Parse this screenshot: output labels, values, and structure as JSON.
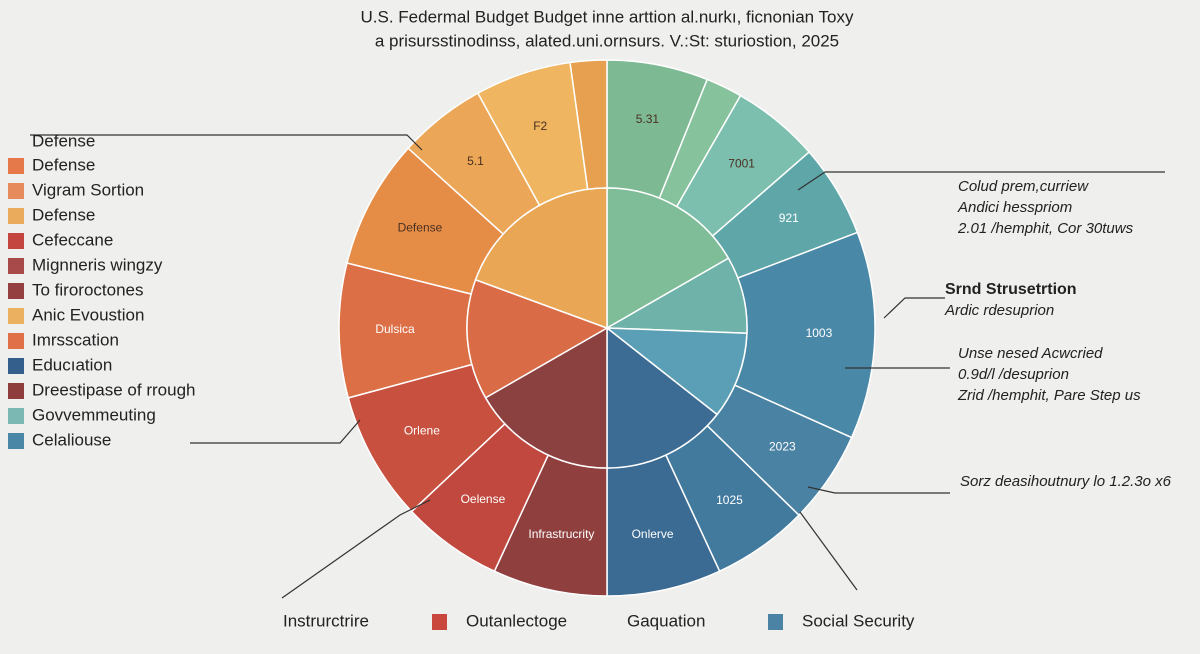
{
  "chart_data": {
    "type": "sunburst",
    "title": "U.S. Federmal Budget Budget inne arttion al.nurkı, ficnonian Toxy",
    "subtitle": "a prisursstinodinss, alated.uni.ornsurs. V.:St: sturiostion, 2025",
    "outer": {
      "categories": [
        "5.31",
        null,
        "7001",
        "921",
        "1003",
        "2023",
        "1025",
        "Onlerve",
        "Infrastrucrity",
        "Oelense",
        "Orlene",
        "Dulsica",
        "Defense",
        "5.1",
        "F2",
        null
      ],
      "values": [
        6.1,
        2.2,
        5.3,
        5.6,
        12.5,
        5.6,
        5.8,
        6.9,
        6.9,
        6.1,
        7.8,
        8.1,
        7.8,
        5.3,
        5.8,
        2.2
      ],
      "colors": [
        "#7dba94",
        "#86c29c",
        "#7cbfae",
        "#5fa6a8",
        "#4a88a8",
        "#4a82a3",
        "#427a9e",
        "#3b6a92",
        "#8e3f3e",
        "#c0483e",
        "#c8503f",
        "#dc6f45",
        "#e58c46",
        "#eba657",
        "#efb561",
        "#e6a04f"
      ]
    },
    "inner": {
      "values": [
        16.7,
        8.9,
        10.0,
        14.4,
        16.7,
        13.9,
        19.4
      ],
      "colors": [
        "#7fbc98",
        "#6fb2aa",
        "#5a9fb5",
        "#3c6b93",
        "#8b4140",
        "#d96c46",
        "#e9a654"
      ]
    },
    "legend": {
      "title": "Defense",
      "items": [
        {
          "label": "Defense",
          "color": "#e5794a"
        },
        {
          "label": "Vigram Sortion",
          "color": "#e68b5c"
        },
        {
          "label": "Defense",
          "color": "#ebab5c"
        },
        {
          "label": "Cefeccane",
          "color": "#c4453f"
        },
        {
          "label": "Mignneris wingzy",
          "color": "#a8494a"
        },
        {
          "label": "To firoroctones",
          "color": "#944040"
        },
        {
          "label": "Anic Evoustion",
          "color": "#ebb060"
        },
        {
          "label": "Imrsscation",
          "color": "#e07048"
        },
        {
          "label": "Educıation",
          "color": "#345f8c"
        },
        {
          "label": "Dreestipase of rrough",
          "color": "#8f3c3c"
        },
        {
          "label": "Govvemmeuting",
          "color": "#7bb8b3"
        },
        {
          "label": "Celaliouse",
          "color": "#4a87a6"
        }
      ]
    },
    "bottom_legend": [
      {
        "label": "Instrurctrire"
      },
      {
        "label": "Outanlectoge",
        "color": "#c9473c"
      },
      {
        "label": "Gaquation"
      },
      {
        "label": "Social Security",
        "color": "#4a83a3"
      }
    ],
    "annotations": [
      {
        "lines": [
          "Colud prem,curriew",
          "Andici hesspriom",
          "2.01 /hemphit, Cor 30tuws"
        ]
      },
      {
        "heading": "Srnd Strusetrtion",
        "lines": [
          "Ardic rdesuprion"
        ]
      },
      {
        "lines": [
          "Unse nesed Acwcried",
          "0.9d/l /desuprion",
          "Zrid /hemphit, Pare Step us"
        ]
      },
      {
        "lines": [
          "Sorz deasihoutnury lo 1.2.3o x6"
        ]
      }
    ]
  }
}
